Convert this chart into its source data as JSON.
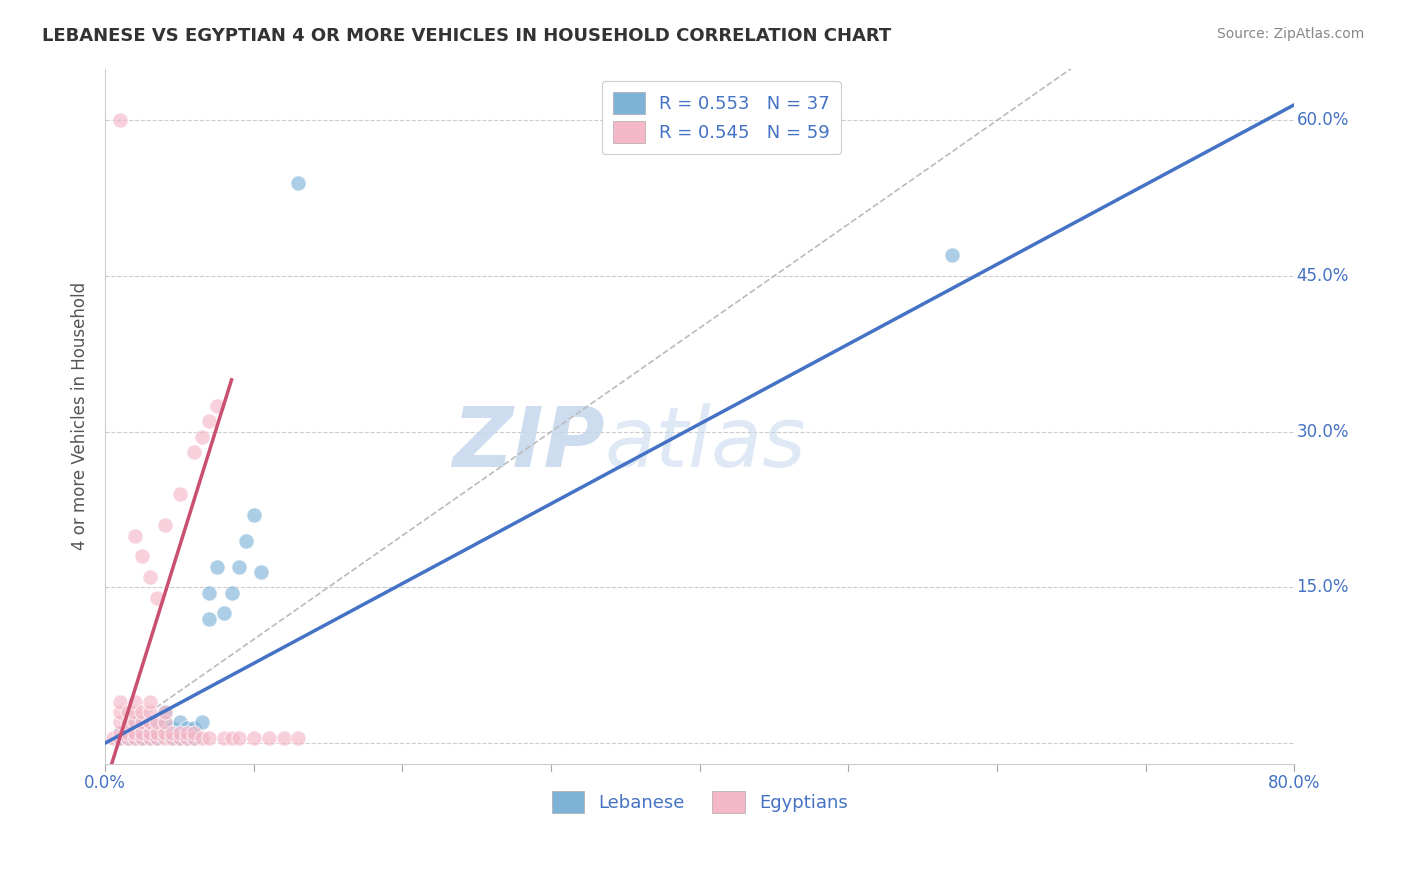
{
  "title": "LEBANESE VS EGYPTIAN 4 OR MORE VEHICLES IN HOUSEHOLD CORRELATION CHART",
  "source": "Source: ZipAtlas.com",
  "ylabel": "4 or more Vehicles in Household",
  "xlim": [
    0.0,
    0.8
  ],
  "ylim": [
    -0.02,
    0.65
  ],
  "xticks": [
    0.0,
    0.1,
    0.2,
    0.3,
    0.4,
    0.5,
    0.6,
    0.7,
    0.8
  ],
  "xticklabels": [
    "0.0%",
    "",
    "",
    "",
    "",
    "",
    "",
    "",
    "80.0%"
  ],
  "yticks": [
    0.0,
    0.15,
    0.3,
    0.45,
    0.6
  ],
  "yticklabels_right": [
    "60.0%",
    "45.0%",
    "30.0%",
    "15.0%",
    ""
  ],
  "grid_color": "#cccccc",
  "background_color": "#ffffff",
  "watermark_zip": "ZIP",
  "watermark_atlas": "atlas",
  "legend_labels": [
    "R = 0.553   N = 37",
    "R = 0.545   N = 59"
  ],
  "blue_color": "#7eb3d8",
  "pink_color": "#f4b8c8",
  "blue_line_color": "#4472c4",
  "pink_line_color": "#c9506e",
  "diagonal_color": "#bbbbbb",
  "label_color": "#4472c4",
  "title_color": "#333333",
  "source_color": "#888888",
  "blue_line": [
    [
      0.0,
      0.0
    ],
    [
      0.8,
      0.615
    ]
  ],
  "pink_line": [
    [
      0.0,
      -0.04
    ],
    [
      0.085,
      0.35
    ]
  ],
  "diagonal_line": [
    [
      0.0,
      0.0
    ],
    [
      0.65,
      0.65
    ]
  ],
  "lebanese_points": [
    [
      0.01,
      0.005
    ],
    [
      0.01,
      0.01
    ],
    [
      0.015,
      0.005
    ],
    [
      0.02,
      0.005
    ],
    [
      0.02,
      0.01
    ],
    [
      0.02,
      0.02
    ],
    [
      0.025,
      0.005
    ],
    [
      0.025,
      0.01
    ],
    [
      0.03,
      0.005
    ],
    [
      0.03,
      0.01
    ],
    [
      0.03,
      0.02
    ],
    [
      0.035,
      0.005
    ],
    [
      0.035,
      0.015
    ],
    [
      0.04,
      0.01
    ],
    [
      0.04,
      0.02
    ],
    [
      0.04,
      0.03
    ],
    [
      0.045,
      0.005
    ],
    [
      0.045,
      0.015
    ],
    [
      0.05,
      0.005
    ],
    [
      0.05,
      0.01
    ],
    [
      0.05,
      0.02
    ],
    [
      0.055,
      0.005
    ],
    [
      0.055,
      0.015
    ],
    [
      0.06,
      0.005
    ],
    [
      0.06,
      0.015
    ],
    [
      0.065,
      0.02
    ],
    [
      0.07,
      0.12
    ],
    [
      0.07,
      0.145
    ],
    [
      0.075,
      0.17
    ],
    [
      0.08,
      0.125
    ],
    [
      0.085,
      0.145
    ],
    [
      0.09,
      0.17
    ],
    [
      0.095,
      0.195
    ],
    [
      0.1,
      0.22
    ],
    [
      0.105,
      0.165
    ],
    [
      0.57,
      0.47
    ]
  ],
  "lebanese_points_high": [
    [
      0.13,
      0.54
    ]
  ],
  "egyptian_points": [
    [
      0.005,
      0.005
    ],
    [
      0.01,
      0.005
    ],
    [
      0.01,
      0.01
    ],
    [
      0.01,
      0.02
    ],
    [
      0.01,
      0.03
    ],
    [
      0.01,
      0.04
    ],
    [
      0.015,
      0.005
    ],
    [
      0.015,
      0.01
    ],
    [
      0.015,
      0.02
    ],
    [
      0.015,
      0.03
    ],
    [
      0.02,
      0.005
    ],
    [
      0.02,
      0.01
    ],
    [
      0.02,
      0.02
    ],
    [
      0.02,
      0.03
    ],
    [
      0.02,
      0.04
    ],
    [
      0.025,
      0.005
    ],
    [
      0.025,
      0.01
    ],
    [
      0.025,
      0.02
    ],
    [
      0.025,
      0.03
    ],
    [
      0.03,
      0.005
    ],
    [
      0.03,
      0.01
    ],
    [
      0.03,
      0.02
    ],
    [
      0.03,
      0.03
    ],
    [
      0.03,
      0.04
    ],
    [
      0.035,
      0.005
    ],
    [
      0.035,
      0.01
    ],
    [
      0.035,
      0.02
    ],
    [
      0.04,
      0.005
    ],
    [
      0.04,
      0.01
    ],
    [
      0.04,
      0.02
    ],
    [
      0.04,
      0.03
    ],
    [
      0.045,
      0.005
    ],
    [
      0.045,
      0.01
    ],
    [
      0.05,
      0.005
    ],
    [
      0.05,
      0.01
    ],
    [
      0.055,
      0.005
    ],
    [
      0.055,
      0.01
    ],
    [
      0.06,
      0.005
    ],
    [
      0.06,
      0.01
    ],
    [
      0.065,
      0.005
    ],
    [
      0.07,
      0.005
    ],
    [
      0.08,
      0.005
    ],
    [
      0.085,
      0.005
    ],
    [
      0.09,
      0.005
    ],
    [
      0.1,
      0.005
    ],
    [
      0.11,
      0.005
    ],
    [
      0.12,
      0.005
    ],
    [
      0.13,
      0.005
    ],
    [
      0.04,
      0.21
    ],
    [
      0.05,
      0.24
    ],
    [
      0.06,
      0.28
    ],
    [
      0.065,
      0.295
    ],
    [
      0.07,
      0.31
    ],
    [
      0.075,
      0.325
    ],
    [
      0.01,
      0.6
    ],
    [
      0.02,
      0.2
    ],
    [
      0.025,
      0.18
    ],
    [
      0.03,
      0.16
    ],
    [
      0.035,
      0.14
    ]
  ]
}
